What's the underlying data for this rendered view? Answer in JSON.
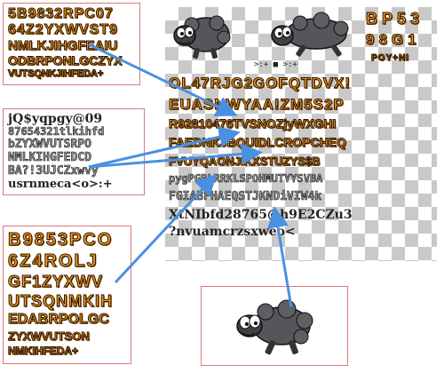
{
  "left_panel_top": {
    "lines": [
      "5B9832RPC07",
      "64Z2YXWVST9",
      "NMLKJIHGFEAIU",
      "ODBRPONLGCZYX",
      "VUTSQNKJIHFEDA+"
    ]
  },
  "left_panel_middle": {
    "lines": [
      "jQ$yqpgy@09",
      "87654321tlkihfd",
      "bZYXWVUTSRPO",
      "NMLKIHGFEDCD",
      "BA?!3UJCZxwvy",
      "usrnmeca<o>:+"
    ]
  },
  "left_panel_bottom": {
    "lines": [
      "B9853PCO",
      "6Z4ROLJ",
      "GF1ZYXWV",
      "UTSQNMKIH",
      "EDABRPOLGC",
      "ZYXWVUTSON",
      "NMKIHFEDA+"
    ]
  },
  "sheet": {
    "top_right_lines": [
      "BP53",
      "98G1",
      "POY+NI"
    ],
    "small_symbols": ">:+ ■  >:+",
    "rows": [
      {
        "text": "OL47RJG2GOFQTDVX!",
        "style": "orange"
      },
      {
        "text": "EUASNWYAA!ZM5S2P",
        "style": "orange"
      },
      {
        "text": "R92810476TVSNOZjyWXGHI",
        "style": "orange"
      },
      {
        "text": "FAEDNKJBQUIDLCROPCHEQ",
        "style": "orange"
      },
      {
        "text": "FVUYQAONJIKXSTUZYS$B",
        "style": "orange"
      },
      {
        "text": "pygPGBLRRKLSPOHMUTYYSVBA",
        "style": "gray"
      },
      {
        "text": "FGIABFHAEQSTJKNDiVIW4k",
        "style": "gray"
      },
      {
        "text": "XtNIbfd28765@h9E2CZu3",
        "style": "dark"
      },
      {
        "text": "?nvuamcrzsxweo<",
        "style": "dark"
      }
    ]
  },
  "colors": {
    "orange_fill": "#f59a1e",
    "panel_border": "#e07a7a",
    "arrow": "#4a90e2",
    "sheep_body": "#55555a"
  }
}
